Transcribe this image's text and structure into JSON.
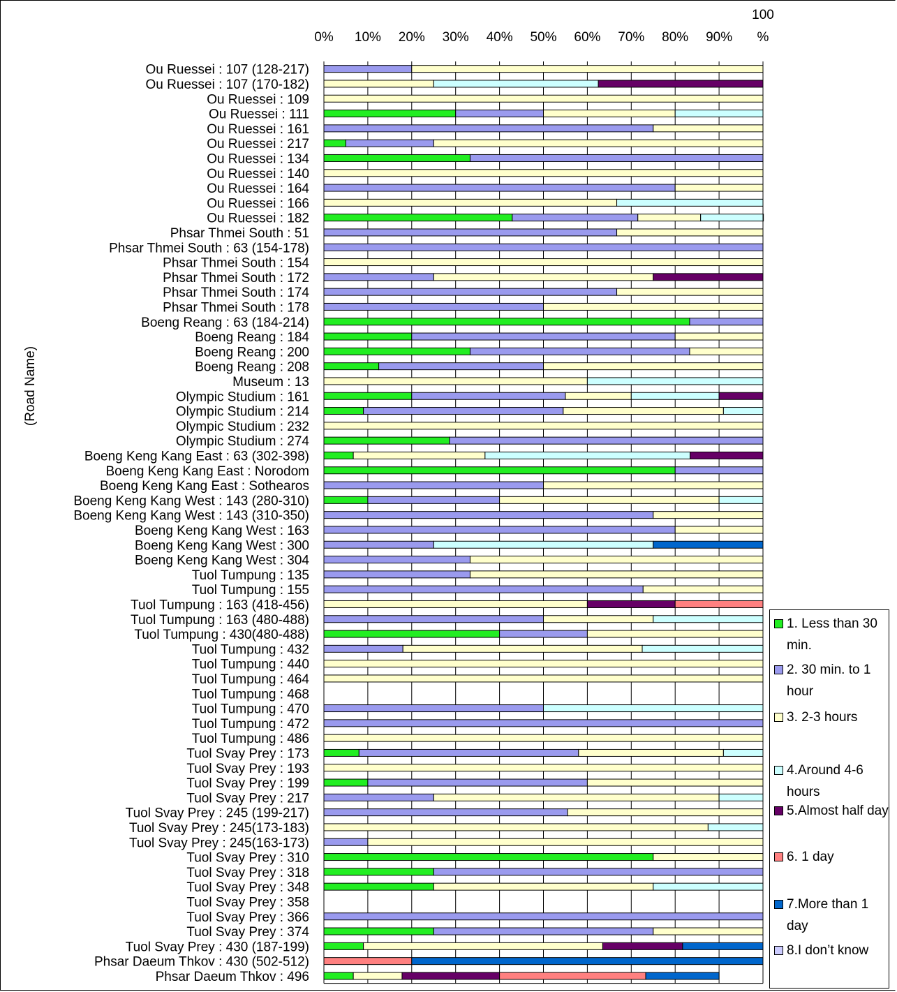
{
  "chart_data": {
    "type": "bar",
    "orientation": "horizontal",
    "stacked": "percent",
    "ylabel": "(Road Name)",
    "x_ticks": [
      "0%",
      "10%",
      "20%",
      "30%",
      "40%",
      "50%",
      "60%",
      "70%",
      "80%",
      "90%",
      "100\n%"
    ],
    "xlim": [
      0,
      100
    ],
    "grid": "vertical",
    "legend_position": "right-bottom",
    "colors": [
      "#22ee22",
      "#9a9aee",
      "#ffffcc",
      "#ccffff",
      "#660066",
      "#ff8080",
      "#0066cc",
      "#ccccff"
    ],
    "series_names": [
      "1. Less than 30 min.",
      "2. 30 min. to 1 hour",
      "3. 2-3 hours",
      "4.Around 4-6 hours",
      "5.Almost half day",
      "6. 1 day",
      "7.More than 1 day",
      "8.I don’t know"
    ],
    "categories": [
      "Ou Ruessei : 107 (128-217)",
      "Ou Ruessei : 107 (170-182)",
      "Ou Ruessei : 109",
      "Ou Ruessei : 111",
      "Ou Ruessei : 161",
      "Ou Ruessei : 217",
      "Ou Ruessei : 134",
      "Ou Ruessei : 140",
      "Ou Ruessei : 164",
      "Ou Ruessei : 166",
      "Ou Ruessei : 182",
      "Phsar Thmei South : 51",
      "Phsar Thmei South : 63 (154-178)",
      "Phsar Thmei South : 154",
      "Phsar Thmei South : 172",
      "Phsar Thmei South : 174",
      "Phsar Thmei South : 178",
      "Boeng Reang : 63 (184-214)",
      "Boeng Reang : 184",
      "Boeng Reang : 200",
      "Boeng Reang : 208",
      "Museum : 13",
      "Olympic Studium : 161",
      "Olympic Studium : 214",
      "Olympic Studium : 232",
      "Olympic Studium : 274",
      "Boeng Keng Kang East : 63 (302-398)",
      "Boeng Keng Kang East : Norodom",
      "Boeng Keng Kang East : Sothearos",
      "Boeng Keng Kang West : 143 (280-310)",
      "Boeng Keng Kang West : 143 (310-350)",
      "Boeng Keng Kang West : 163",
      "Boeng Keng Kang West : 300",
      "Boeng Keng Kang West : 304",
      "Tuol Tumpung : 135",
      "Tuol Tumpung : 155",
      "Tuol Tumpung : 163 (418-456)",
      "Tuol Tumpung : 163 (480-488)",
      "Tuol Tumpung : 430(480-488)",
      "Tuol Tumpung : 432",
      "Tuol Tumpung : 440",
      "Tuol Tumpung : 464",
      "Tuol Tumpung : 468",
      "Tuol Tumpung : 470",
      "Tuol Tumpung : 472",
      "Tuol Tumpung : 486",
      "Tuol Svay Prey : 173",
      "Tuol Svay Prey : 193",
      "Tuol Svay Prey : 199",
      "Tuol Svay Prey : 217",
      "Tuol Svay Prey : 245 (199-217)",
      "Tuol Svay Prey : 245(173-183)",
      "Tuol Svay Prey : 245(163-173)",
      "Tuol Svay Prey : 310",
      "Tuol Svay Prey : 318",
      "Tuol Svay Prey : 348",
      "Tuol Svay Prey : 358",
      "Tuol Svay Prey : 366",
      "Tuol Svay Prey : 374",
      "Tuol Svay Prey : 430 (187-199)",
      "Phsar Daeum Thkov : 430 (502-512)",
      "Phsar Daeum Thkov : 496"
    ],
    "values": [
      [
        0,
        20,
        80,
        0,
        0,
        0,
        0,
        0
      ],
      [
        0,
        0,
        25,
        37.5,
        37.5,
        0,
        0,
        0
      ],
      [
        0,
        0,
        100,
        0,
        0,
        0,
        0,
        0
      ],
      [
        30,
        20,
        30,
        20,
        0,
        0,
        0,
        0
      ],
      [
        0,
        75,
        25,
        0,
        0,
        0,
        0,
        0
      ],
      [
        5,
        20,
        75,
        0,
        0,
        0,
        0,
        0
      ],
      [
        33.3,
        66.7,
        0,
        0,
        0,
        0,
        0,
        0
      ],
      [
        0,
        0,
        100,
        0,
        0,
        0,
        0,
        0
      ],
      [
        0,
        80,
        20,
        0,
        0,
        0,
        0,
        0
      ],
      [
        0,
        0,
        66.7,
        33.3,
        0,
        0,
        0,
        0
      ],
      [
        42.9,
        28.6,
        14.3,
        14.3,
        0,
        0,
        0,
        0
      ],
      [
        0,
        66.7,
        33.3,
        0,
        0,
        0,
        0,
        0
      ],
      [
        0,
        100,
        0,
        0,
        0,
        0,
        0,
        0
      ],
      [
        0,
        0,
        100,
        0,
        0,
        0,
        0,
        0
      ],
      [
        0,
        25,
        50,
        0,
        25,
        0,
        0,
        0
      ],
      [
        0,
        66.7,
        33.3,
        0,
        0,
        0,
        0,
        0
      ],
      [
        0,
        50,
        50,
        0,
        0,
        0,
        0,
        0
      ],
      [
        83.3,
        16.7,
        0,
        0,
        0,
        0,
        0,
        0
      ],
      [
        20,
        60,
        20,
        0,
        0,
        0,
        0,
        0
      ],
      [
        33.3,
        50,
        16.7,
        0,
        0,
        0,
        0,
        0
      ],
      [
        12.5,
        37.5,
        50,
        0,
        0,
        0,
        0,
        0
      ],
      [
        0,
        0,
        60,
        40,
        0,
        0,
        0,
        0
      ],
      [
        20,
        35,
        15,
        20,
        10,
        0,
        0,
        0
      ],
      [
        9,
        45.5,
        36.5,
        9,
        0,
        0,
        0,
        0
      ],
      [
        0,
        0,
        100,
        0,
        0,
        0,
        0,
        0
      ],
      [
        28.6,
        71.4,
        0,
        0,
        0,
        0,
        0,
        0
      ],
      [
        6.7,
        0,
        30,
        46.7,
        16.6,
        0,
        0,
        0
      ],
      [
        80,
        20,
        0,
        0,
        0,
        0,
        0,
        0
      ],
      [
        0,
        50,
        50,
        0,
        0,
        0,
        0,
        0
      ],
      [
        10,
        30,
        50,
        10,
        0,
        0,
        0,
        0
      ],
      [
        0,
        75,
        25,
        0,
        0,
        0,
        0,
        0
      ],
      [
        0,
        80,
        20,
        0,
        0,
        0,
        0,
        0
      ],
      [
        0,
        25,
        0,
        50,
        0,
        0,
        25,
        0
      ],
      [
        0,
        33.3,
        66.7,
        0,
        0,
        0,
        0,
        0
      ],
      [
        0,
        33.3,
        66.7,
        0,
        0,
        0,
        0,
        0
      ],
      [
        0,
        72.7,
        27.3,
        0,
        0,
        0,
        0,
        0
      ],
      [
        0,
        0,
        60,
        0,
        20,
        20,
        0,
        0
      ],
      [
        0,
        50,
        25,
        25,
        0,
        0,
        0,
        0
      ],
      [
        40,
        20,
        40,
        0,
        0,
        0,
        0,
        0
      ],
      [
        0,
        18,
        54.5,
        27.5,
        0,
        0,
        0,
        0
      ],
      [
        0,
        0,
        100,
        0,
        0,
        0,
        0,
        0
      ],
      [
        0,
        0,
        100,
        0,
        0,
        0,
        0,
        0
      ],
      [
        0,
        0,
        0,
        0,
        0,
        0,
        0,
        0
      ],
      [
        0,
        50,
        0,
        50,
        0,
        0,
        0,
        0
      ],
      [
        0,
        100,
        0,
        0,
        0,
        0,
        0,
        0
      ],
      [
        0,
        0,
        100,
        0,
        0,
        0,
        0,
        0
      ],
      [
        8,
        50,
        33,
        9,
        0,
        0,
        0,
        0
      ],
      [
        0,
        0,
        100,
        0,
        0,
        0,
        0,
        0
      ],
      [
        10,
        50,
        40,
        0,
        0,
        0,
        0,
        0
      ],
      [
        0,
        25,
        65,
        10,
        0,
        0,
        0,
        0
      ],
      [
        0,
        55.5,
        44.5,
        0,
        0,
        0,
        0,
        0
      ],
      [
        0,
        0,
        87.5,
        12.5,
        0,
        0,
        0,
        0
      ],
      [
        0,
        10,
        90,
        0,
        0,
        0,
        0,
        0
      ],
      [
        75,
        0,
        25,
        0,
        0,
        0,
        0,
        0
      ],
      [
        25,
        75,
        0,
        0,
        0,
        0,
        0,
        0
      ],
      [
        25,
        0,
        50,
        25,
        0,
        0,
        0,
        0
      ],
      [
        0,
        0,
        0,
        0,
        0,
        0,
        0,
        0
      ],
      [
        0,
        100,
        0,
        0,
        0,
        0,
        0,
        0
      ],
      [
        25,
        50,
        25,
        0,
        0,
        0,
        0,
        0
      ],
      [
        9,
        0,
        54.5,
        0,
        18.2,
        0,
        18.3,
        0
      ],
      [
        0,
        0,
        0,
        0,
        0,
        20,
        80,
        0
      ],
      [
        6.7,
        0,
        11.1,
        0,
        22.2,
        33.3,
        16.7,
        0
      ]
    ]
  }
}
